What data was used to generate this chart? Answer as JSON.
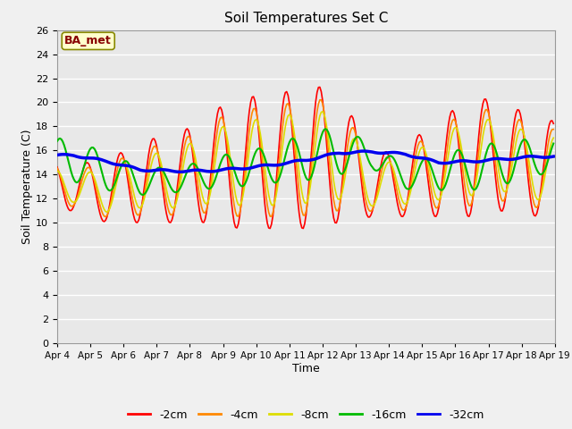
{
  "title": "Soil Temperatures Set C",
  "xlabel": "Time",
  "ylabel": "Soil Temperature (C)",
  "ylim": [
    0,
    26
  ],
  "yticks": [
    0,
    2,
    4,
    6,
    8,
    10,
    12,
    14,
    16,
    18,
    20,
    22,
    24,
    26
  ],
  "x_labels": [
    "Apr 4",
    "Apr 5",
    "Apr 6",
    "Apr 7",
    "Apr 8",
    "Apr 9",
    "Apr 10",
    "Apr 11",
    "Apr 12",
    "Apr 13",
    "Apr 14",
    "Apr 15",
    "Apr 16",
    "Apr 17",
    "Apr 18",
    "Apr 19"
  ],
  "annotation_text": "BA_met",
  "annotation_box_facecolor": "#ffffcc",
  "annotation_box_edgecolor": "#888800",
  "annotation_text_color": "#880000",
  "line_colors": {
    "-2cm": "#ff0000",
    "-4cm": "#ff8800",
    "-8cm": "#dddd00",
    "-16cm": "#00bb00",
    "-32cm": "#0000ee"
  },
  "line_widths": {
    "-2cm": 1.2,
    "-4cm": 1.2,
    "-8cm": 1.2,
    "-16cm": 1.5,
    "-32cm": 2.5
  },
  "fig_bg_color": "#f0f0f0",
  "plot_bg_color": "#e8e8e8",
  "grid_color": "#ffffff",
  "days": 15,
  "pts_per_day": 24
}
